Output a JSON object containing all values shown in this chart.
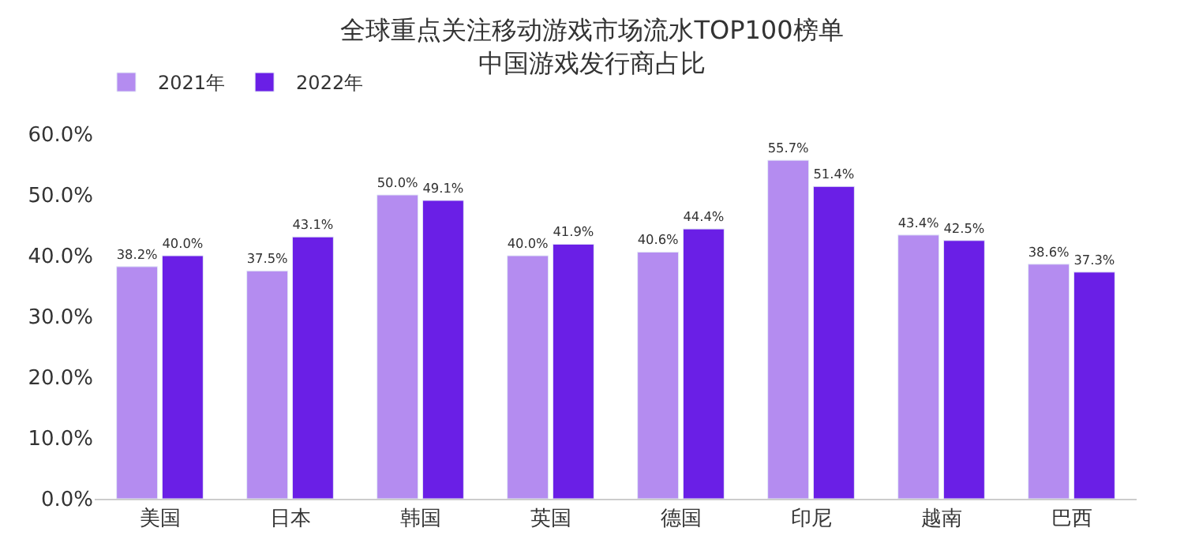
{
  "chart_data": {
    "type": "bar",
    "title": "全球重点关注移动游戏市场流水TOP100榜单",
    "subtitle": "中国游戏发行商占比",
    "categories": [
      "美国",
      "日本",
      "韩国",
      "英国",
      "德国",
      "印尼",
      "越南",
      "巴西"
    ],
    "series": [
      {
        "name": "2021年",
        "color": "#b48cf0",
        "values": [
          38.2,
          37.5,
          50.0,
          40.0,
          40.6,
          55.7,
          43.4,
          38.6
        ],
        "value_labels": [
          "38.2%",
          "37.5%",
          "50.0%",
          "40.0%",
          "40.6%",
          "55.7%",
          "43.4%",
          "38.6%"
        ]
      },
      {
        "name": "2022年",
        "color": "#6a1fe6",
        "values": [
          40.0,
          43.1,
          49.1,
          41.9,
          44.4,
          51.4,
          42.5,
          37.3
        ],
        "value_labels": [
          "40.0%",
          "43.1%",
          "49.1%",
          "41.9%",
          "44.4%",
          "51.4%",
          "42.5%",
          "37.3%"
        ]
      }
    ],
    "ylim": [
      0,
      60
    ],
    "yticks": [
      {
        "value": 0,
        "label": "0.0%"
      },
      {
        "value": 10,
        "label": "10.0%"
      },
      {
        "value": 20,
        "label": "20.0%"
      },
      {
        "value": 30,
        "label": "30.0%"
      },
      {
        "value": 40,
        "label": "40.0%"
      },
      {
        "value": 50,
        "label": "50.0%"
      },
      {
        "value": 60,
        "label": "60.0%"
      }
    ],
    "legend": "top left"
  }
}
